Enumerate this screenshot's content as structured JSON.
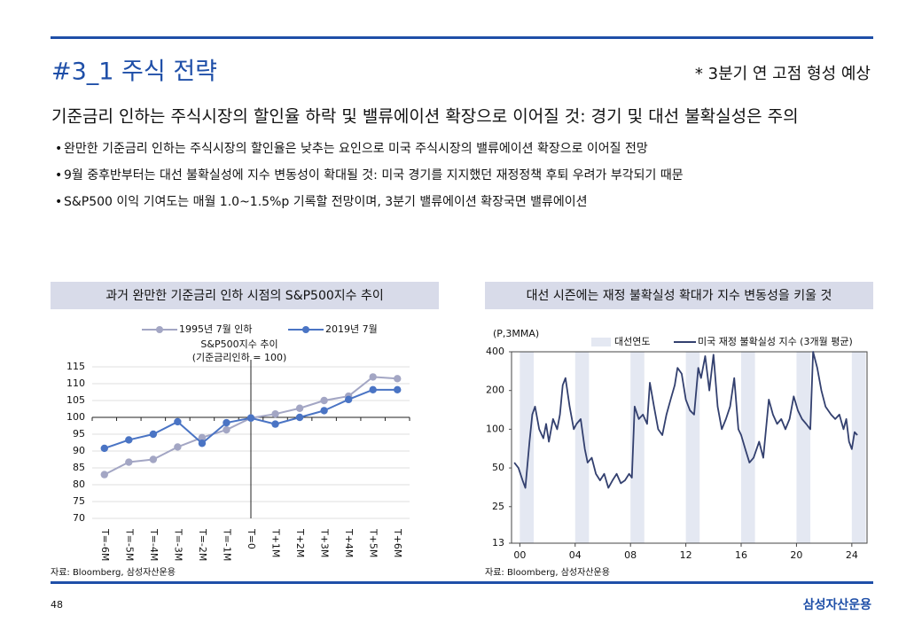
{
  "header": {
    "title": "#3_1 주식 전략",
    "note": "* 3분기 연 고점 형성 예상"
  },
  "headline": "기준금리 인하는 주식시장의 할인율 하락 및 밸류에이션 확장으로 이어질 것: 경기 및 대선 불확실성은 주의",
  "bullets": [
    "완만한 기준금리 인하는 주식시장의 할인율은 낮추는 요인으로 미국 주식시장의 밸류에이션 확장으로 이어질 전망",
    "9월 중후반부터는 대선 불확실성에 지수 변동성이 확대될 것: 미국 경기를 지지했던 재정정책 후퇴 우려가 부각되기 때문",
    "S&P500 이익 기여도는 매월 1.0~1.5%p 기록할 전망이며, 3분기 밸류에이션 확장국면 밸류에이션"
  ],
  "chart_data": [
    {
      "type": "line",
      "title": "과거 완만한 기준금리 인하 시점의 S&P500지수 추이",
      "annotation": [
        "S&P500지수 추이",
        "(기준금리인하 = 100)"
      ],
      "categories": [
        "T=-6M",
        "T=-5M",
        "T=-4M",
        "T=-3M",
        "T=-2M",
        "T=-1M",
        "T=0",
        "T+1M",
        "T+2M",
        "T+3M",
        "T+4M",
        "T+5M",
        "T+6M"
      ],
      "series": [
        {
          "name": "1995년 7월 인하",
          "color": "#a3a6c4",
          "values": [
            83,
            86.7,
            87.5,
            91.2,
            94,
            96.3,
            99.8,
            101,
            102.7,
            105,
            106.3,
            112,
            111.5
          ]
        },
        {
          "name": "2019년 7월",
          "color": "#4a74c4",
          "values": [
            90.8,
            93.3,
            95,
            98.7,
            92.3,
            98.4,
            99.8,
            98,
            100,
            102,
            105.3,
            108.2,
            108.2
          ]
        }
      ],
      "ylim": [
        70,
        115
      ],
      "yticks": [
        70,
        75,
        80,
        85,
        90,
        95,
        100,
        105,
        110,
        115
      ],
      "baseline": 100,
      "grid": true,
      "source": "자료: Bloomberg, 삼성자산운용"
    },
    {
      "type": "line",
      "title": "대선 시즌에는 재정 불확실성 확대가 지수 변동성을 키울 것",
      "y_label": "(P,3MMA)",
      "log_scale": true,
      "shaded": {
        "name": "대선연도",
        "color": "#e4e8f2",
        "spans": [
          [
            2000,
            2001
          ],
          [
            2004,
            2005
          ],
          [
            2008,
            2009
          ],
          [
            2012,
            2013
          ],
          [
            2016,
            2017
          ],
          [
            2020,
            2021
          ],
          [
            2024,
            2025
          ]
        ]
      },
      "series": [
        {
          "name": "미국 재정 불확실성 지수 (3개월 평균)",
          "color": "#33406f",
          "x": [
            1999.6,
            1999.9,
            2000.2,
            2000.4,
            2000.7,
            2000.9,
            2001.1,
            2001.4,
            2001.7,
            2001.9,
            2002.1,
            2002.4,
            2002.7,
            2002.9,
            2003.1,
            2003.3,
            2003.6,
            2003.9,
            2004.1,
            2004.4,
            2004.7,
            2004.9,
            2005.2,
            2005.5,
            2005.8,
            2006.1,
            2006.4,
            2006.7,
            2007.0,
            2007.3,
            2007.6,
            2007.9,
            2008.1,
            2008.3,
            2008.6,
            2008.9,
            2009.2,
            2009.4,
            2009.7,
            2010.0,
            2010.3,
            2010.6,
            2010.9,
            2011.2,
            2011.4,
            2011.7,
            2012.0,
            2012.3,
            2012.6,
            2012.9,
            2013.1,
            2013.4,
            2013.7,
            2014.0,
            2014.3,
            2014.6,
            2014.9,
            2015.2,
            2015.5,
            2015.8,
            2016.0,
            2016.3,
            2016.6,
            2016.9,
            2017.3,
            2017.6,
            2018.0,
            2018.3,
            2018.6,
            2018.9,
            2019.2,
            2019.5,
            2019.8,
            2020.1,
            2020.4,
            2020.7,
            2021.0,
            2021.2,
            2021.5,
            2021.8,
            2022.1,
            2022.5,
            2022.8,
            2023.1,
            2023.4,
            2023.6,
            2023.8,
            2024.0,
            2024.2,
            2024.4
          ],
          "values": [
            55,
            50,
            40,
            35,
            80,
            130,
            150,
            100,
            85,
            110,
            80,
            120,
            100,
            130,
            220,
            250,
            150,
            100,
            110,
            120,
            70,
            55,
            60,
            45,
            40,
            45,
            35,
            40,
            45,
            38,
            40,
            45,
            42,
            150,
            120,
            130,
            110,
            230,
            150,
            100,
            90,
            130,
            170,
            220,
            300,
            270,
            170,
            140,
            130,
            300,
            250,
            370,
            200,
            380,
            150,
            100,
            120,
            150,
            250,
            100,
            90,
            70,
            55,
            60,
            80,
            60,
            170,
            130,
            110,
            120,
            100,
            120,
            180,
            140,
            120,
            110,
            100,
            400,
            300,
            200,
            150,
            130,
            120,
            130,
            100,
            120,
            80,
            70,
            95,
            90
          ]
        }
      ],
      "xlim": [
        1999.4,
        2025.1
      ],
      "xticks": [
        {
          "value": 2000,
          "label": "00"
        },
        {
          "value": 2004,
          "label": "04"
        },
        {
          "value": 2008,
          "label": "08"
        },
        {
          "value": 2012,
          "label": "12"
        },
        {
          "value": 2016,
          "label": "16"
        },
        {
          "value": 2020,
          "label": "20"
        },
        {
          "value": 2024,
          "label": "24"
        }
      ],
      "ylim": [
        13,
        400
      ],
      "yticks": [
        13,
        25,
        50,
        100,
        200,
        400
      ],
      "source": "자료: Bloomberg, 삼성자산운용"
    }
  ],
  "footer": {
    "page": "48",
    "brand": "삼성자산운용"
  }
}
